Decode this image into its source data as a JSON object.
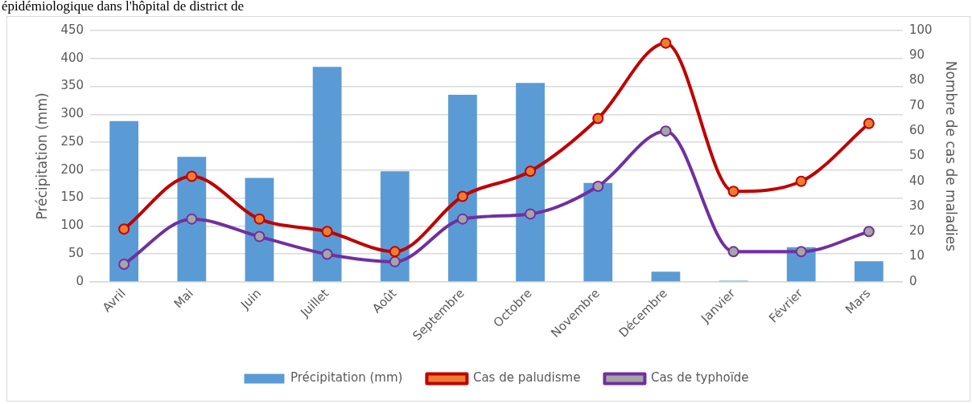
{
  "chart_data": {
    "type": "bar",
    "ylabel": "Précipitation (mm)",
    "y2label": "Nombre de cas de maladies",
    "annotations": [
      "épidémiologique dans l'hôpital de district de"
    ],
    "categories": [
      "Avril",
      "Mai",
      "Juin",
      "Juillet",
      "Août",
      "Septembre",
      "Octobre",
      "Novembre",
      "Décembre",
      "Janvier",
      "Février",
      "Mars"
    ],
    "series": [
      {
        "name": "Précipitation (mm)",
        "color": "#5b9bd5",
        "values": [
          288,
          224,
          186,
          385,
          198,
          335,
          356,
          177,
          18,
          2,
          62,
          37
        ]
      },
      {
        "name": "Cas de paludisme",
        "type": "line",
        "axis": "y2",
        "color": "#c00000",
        "values": [
          21,
          42,
          25,
          20,
          12,
          34,
          44,
          65,
          95,
          36,
          40,
          63
        ]
      },
      {
        "name": "Cas de typhoïde",
        "type": "line",
        "axis": "y2",
        "color": "#7030a0",
        "values": [
          7,
          25,
          18,
          11,
          8,
          25,
          27,
          38,
          60,
          12,
          12,
          20
        ]
      }
    ],
    "ylim": [
      0,
      450
    ],
    "yticks": [
      0,
      50,
      100,
      150,
      200,
      250,
      300,
      350,
      400,
      450
    ],
    "y2lim": [
      0,
      100
    ],
    "y2ticks": [
      0,
      10,
      20,
      30,
      40,
      50,
      60,
      70,
      80,
      90,
      100
    ],
    "grid": "y",
    "legend": "bottom",
    "marker": "circle",
    "line_style": "solid"
  }
}
